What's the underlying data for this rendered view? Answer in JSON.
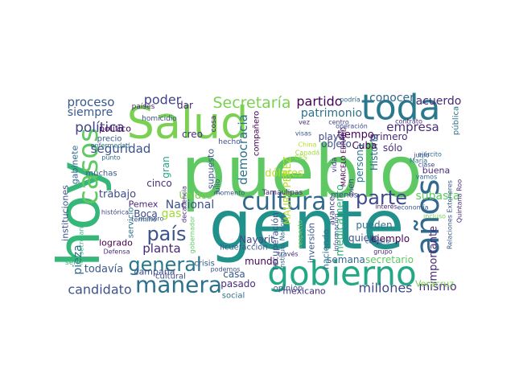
{
  "figure": {
    "type": "word-cloud",
    "background": "#ffffff",
    "palette": "viridis"
  },
  "words": [
    {
      "text": "pueblo",
      "color": "#5ec962"
    },
    {
      "text": "gente",
      "color": "#21918c"
    },
    {
      "text": "Salud",
      "color": "#7ad151"
    },
    {
      "text": "hoy",
      "color": "#35b779"
    },
    {
      "text": "gobierno",
      "color": "#22a884"
    },
    {
      "text": "toda",
      "color": "#2a788e"
    },
    {
      "text": "manera",
      "color": "#2c728e"
    },
    {
      "text": "cultura",
      "color": "#31688e"
    },
    {
      "text": "años",
      "color": "#31688e"
    },
    {
      "text": "casos",
      "color": "#5ec962"
    },
    {
      "text": "general",
      "color": "#2a788e"
    },
    {
      "text": "país",
      "color": "#3b528b"
    },
    {
      "text": "parte",
      "color": "#3e4a89"
    },
    {
      "text": "Secretaría",
      "color": "#7ad151"
    },
    {
      "text": "democracia",
      "color": "#2c728e"
    },
    {
      "text": "política",
      "color": "#414487"
    },
    {
      "text": "seguridad",
      "color": "#3b528b"
    },
    {
      "text": "proceso",
      "color": "#38598c"
    },
    {
      "text": "poder",
      "color": "#414487"
    },
    {
      "text": "siempre",
      "color": "#38598c"
    },
    {
      "text": "partido",
      "color": "#440154"
    },
    {
      "text": "patrimonio",
      "color": "#2c728e"
    },
    {
      "text": "empresa",
      "color": "#472d7b"
    },
    {
      "text": "conocer",
      "color": "#31688e"
    },
    {
      "text": "acuerdo",
      "color": "#482878"
    },
    {
      "text": "candidato",
      "color": "#3b528b"
    },
    {
      "text": "millones",
      "color": "#3e4a89"
    },
    {
      "text": "mismo",
      "color": "#472d7b"
    },
    {
      "text": "planta",
      "color": "#482878"
    },
    {
      "text": "Nacional",
      "color": "#3b528b"
    },
    {
      "text": "trabajo",
      "color": "#3e4a89"
    },
    {
      "text": "pieza",
      "color": "#31688e"
    },
    {
      "text": "todavía",
      "color": "#38598c"
    },
    {
      "text": "importante",
      "color": "#482878"
    },
    {
      "text": "subasta",
      "color": "#5ec962"
    },
    {
      "text": "persona",
      "color": "#2a788e"
    },
    {
      "text": "Historia",
      "color": "#2c728e"
    },
    {
      "text": "medicamento",
      "color": "#35b779"
    },
    {
      "text": "MAURY PÉREZ",
      "color": "#b5de2b"
    },
    {
      "text": "dólares",
      "color": "#b5de2b"
    },
    {
      "text": "Unidos",
      "color": "#7ad151"
    },
    {
      "text": "gas",
      "color": "#a0da39"
    },
    {
      "text": "Cuba",
      "color": "#440154"
    },
    {
      "text": "tiempo",
      "color": "#440154"
    },
    {
      "text": "objeto",
      "color": "#3b528b"
    },
    {
      "text": "primero",
      "color": "#482878"
    },
    {
      "text": "sólo",
      "color": "#472d7b"
    },
    {
      "text": "playa",
      "color": "#3e4a89"
    },
    {
      "text": "semana",
      "color": "#31688e"
    },
    {
      "text": "secretario",
      "color": "#5ec962"
    },
    {
      "text": "ejemplo",
      "color": "#440154"
    },
    {
      "text": "quiero",
      "color": "#3b528b"
    },
    {
      "text": "pueden",
      "color": "#2c728e"
    },
    {
      "text": "mundo",
      "color": "#440154"
    },
    {
      "text": "casa",
      "color": "#38598c"
    },
    {
      "text": "pasado",
      "color": "#472d7b"
    },
    {
      "text": "Pemex",
      "color": "#482878"
    },
    {
      "text": "Boca",
      "color": "#3e4a89"
    },
    {
      "text": "logrado",
      "color": "#440154"
    },
    {
      "text": "cinco",
      "color": "#472d7b"
    },
    {
      "text": "Nayarit",
      "color": "#3e4a89"
    },
    {
      "text": "mexicano",
      "color": "#472d7b"
    },
    {
      "text": "inversión",
      "color": "#38598c"
    },
    {
      "text": "haciendo",
      "color": "#2c728e"
    },
    {
      "text": "recuperación",
      "color": "#3b528b"
    },
    {
      "text": "supuesto",
      "color": "#3b528b"
    },
    {
      "text": "gran",
      "color": "#22a884"
    },
    {
      "text": "creo",
      "color": "#472d7b"
    },
    {
      "text": "dar",
      "color": "#482878"
    },
    {
      "text": "compañero",
      "color": "#440154"
    },
    {
      "text": "buena",
      "color": "#482878"
    },
    {
      "text": "Veracruz",
      "color": "#7ad151"
    },
    {
      "text": "pública",
      "color": "#2c728e"
    },
    {
      "text": "instituciones",
      "color": "#3b528b"
    },
    {
      "text": "gabinete",
      "color": "#31688e"
    },
    {
      "text": "político",
      "color": "#440154"
    },
    {
      "text": "precio",
      "color": "#38598c"
    },
    {
      "text": "muchas",
      "color": "#38598c"
    },
    {
      "text": "servicio",
      "color": "#2c728e"
    },
    {
      "text": "campaña",
      "color": "#3e4a89"
    },
    {
      "text": "cultural",
      "color": "#3e4a89"
    },
    {
      "text": "licuefacción",
      "color": "#38598c"
    },
    {
      "text": "opinión",
      "color": "#3b528b"
    },
    {
      "text": "social",
      "color": "#2c728e"
    },
    {
      "text": "crisis",
      "color": "#38598c"
    },
    {
      "text": "Tamaulipas",
      "color": "#482878"
    },
    {
      "text": "menos",
      "color": "#3b528b"
    },
    {
      "text": "avance",
      "color": "#414487"
    },
    {
      "text": "bien",
      "color": "#414487"
    },
    {
      "text": "vida",
      "color": "#414487"
    },
    {
      "text": "hecho",
      "color": "#3b528b"
    },
    {
      "text": "julio",
      "color": "#3b528b"
    },
    {
      "text": "cosa",
      "color": "#482878"
    },
    {
      "text": "países",
      "color": "#482878"
    },
    {
      "text": "homicidio",
      "color": "#3b528b"
    },
    {
      "text": "enfermedad",
      "color": "#2c728e"
    },
    {
      "text": "punto",
      "color": "#31688e"
    },
    {
      "text": "histórica",
      "color": "#3e4a89"
    },
    {
      "text": "Defensa",
      "color": "#472d7b"
    },
    {
      "text": "término",
      "color": "#38598c"
    },
    {
      "text": "número",
      "color": "#38598c"
    },
    {
      "text": "decadencia",
      "color": "#482878"
    },
    {
      "text": "momento",
      "color": "#38598c"
    },
    {
      "text": "serie",
      "color": "#35b779"
    },
    {
      "text": "secretaria",
      "color": "#35b779"
    },
    {
      "text": "gobernador",
      "color": "#5ec962"
    },
    {
      "text": "podemos",
      "color": "#3b528b"
    },
    {
      "text": "través",
      "color": "#472d7b"
    },
    {
      "text": "Instituto Nacional",
      "color": "#31688e"
    },
    {
      "text": "respecto",
      "color": "#7ad151"
    },
    {
      "text": "interés",
      "color": "#482878"
    },
    {
      "text": "economía",
      "color": "#38598c"
    },
    {
      "text": "incluso",
      "color": "#7ad151"
    },
    {
      "text": "Quintana Roo",
      "color": "#482878"
    },
    {
      "text": "MARCELO EBRARD",
      "color": "#440154"
    },
    {
      "text": "información",
      "color": "#3b528b"
    },
    {
      "text": "compra",
      "color": "#38598c"
    },
    {
      "text": "grupo",
      "color": "#482878"
    },
    {
      "text": "contrato",
      "color": "#472d7b"
    },
    {
      "text": "vez",
      "color": "#472d7b"
    },
    {
      "text": "centro",
      "color": "#414487"
    },
    {
      "text": "operación",
      "color": "#3e4a89"
    },
    {
      "text": "visas",
      "color": "#3b528b"
    },
    {
      "text": "podría",
      "color": "#31688e"
    },
    {
      "text": "China",
      "color": "#b5de2b"
    },
    {
      "text": "Relaciones Exteriores",
      "color": "#38598c"
    },
    {
      "text": "María",
      "color": "#2c728e"
    },
    {
      "text": "junio",
      "color": "#3e4a89"
    },
    {
      "text": "ejército",
      "color": "#31688e"
    },
    {
      "text": "clase",
      "color": "#3e4a89"
    },
    {
      "text": "Canadá",
      "color": "#a0da39"
    },
    {
      "text": "vamos",
      "color": "#31688e"
    },
    {
      "text": "CES",
      "color": "#a0da39"
    }
  ]
}
